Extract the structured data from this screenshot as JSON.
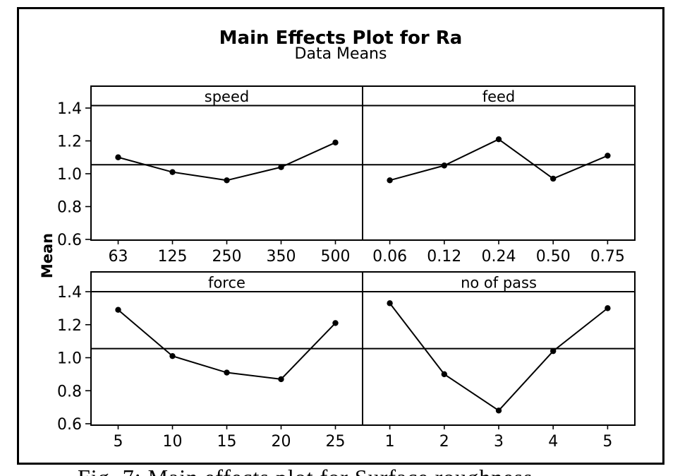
{
  "figure": {
    "title": "Main Effects Plot for Ra",
    "subtitle": "Data Means",
    "ylabel": "Mean",
    "caption": "Fig. 7: Main effects plot for Surface roughness"
  },
  "colors": {
    "foreground": "#000000",
    "background": "#ffffff"
  },
  "chart_data": {
    "type": "line",
    "title": "Main Effects Plot for Ra",
    "subtitle": "Data Means",
    "ylabel": "Mean",
    "ylim": [
      0.55,
      1.5
    ],
    "yticks": [
      "1.4",
      "1.2",
      "1.0",
      "0.8",
      "0.6"
    ],
    "grid": false,
    "legend": "none",
    "reference_line": 1.055,
    "layout": "2x2 paneled main-effects plot, shared Mean y-axis, black points connected by lines, horizontal grand-mean reference line in each panel",
    "panels": [
      {
        "label": "speed",
        "categories": [
          "63",
          "125",
          "250",
          "350",
          "500"
        ],
        "values": [
          1.1,
          1.01,
          0.96,
          1.04,
          1.19
        ]
      },
      {
        "label": "feed",
        "categories": [
          "0.06",
          "0.12",
          "0.24",
          "0.50",
          "0.75"
        ],
        "values": [
          0.96,
          1.05,
          1.21,
          0.97,
          1.11
        ]
      },
      {
        "label": "force",
        "categories": [
          "5",
          "10",
          "15",
          "20",
          "25"
        ],
        "values": [
          1.29,
          1.01,
          0.91,
          0.87,
          1.21
        ]
      },
      {
        "label": "no of pass",
        "categories": [
          "1",
          "2",
          "3",
          "4",
          "5"
        ],
        "values": [
          1.33,
          0.9,
          0.68,
          1.04,
          1.3
        ]
      }
    ]
  }
}
